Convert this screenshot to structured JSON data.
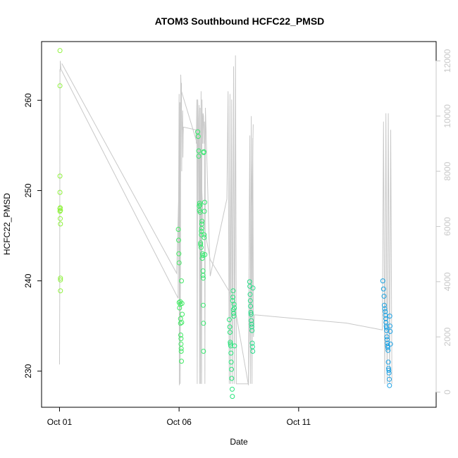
{
  "chart_data": {
    "type": "scatter",
    "title": "ATOM3 Southbound HCFC22_PMSD",
    "xlabel": "Date",
    "ylabel": "HCFC22_PMSD",
    "x_unit": "days since Oct 01",
    "xlim": [
      -0.75,
      15.75
    ],
    "ylim": [
      226,
      266.5
    ],
    "y2lim": [
      -550,
      12700
    ],
    "x_ticks": [
      {
        "value": 0,
        "label": "Oct 01"
      },
      {
        "value": 5,
        "label": "Oct 06"
      },
      {
        "value": 10,
        "label": "Oct 11"
      }
    ],
    "y_ticks": [
      230,
      240,
      250,
      260
    ],
    "y2_ticks": [
      0,
      2000,
      4000,
      6000,
      8000,
      10000,
      12000
    ],
    "grid": false,
    "colors": {
      "axis": "#000000",
      "secondary_axis": "#c8c8c8",
      "trace_line": "#c8c8c8",
      "point_gradient": [
        "#8ef23a",
        "#1a9ee8"
      ]
    },
    "series": [
      {
        "type": "scatter",
        "axis": "left",
        "x": [
          0.02,
          0.02,
          0.02,
          0.02,
          0.02,
          0.02,
          0.03,
          0.04,
          0.04,
          0.04,
          0.04,
          0.04,
          0.03,
          4.97,
          4.98,
          4.99,
          5.0,
          5.0,
          5.02,
          5.05,
          5.05,
          5.06,
          5.06,
          5.07,
          5.08,
          5.08,
          5.09,
          5.09,
          5.1,
          5.1,
          5.11,
          5.12,
          5.13,
          5.78,
          5.8,
          5.82,
          5.82,
          5.84,
          5.85,
          5.86,
          5.88,
          5.88,
          5.9,
          5.9,
          5.92,
          5.93,
          5.93,
          5.94,
          5.95,
          5.96,
          5.97,
          5.98,
          5.99,
          6.0,
          6.0,
          6.01,
          6.01,
          6.02,
          6.02,
          6.03,
          6.04,
          6.05,
          6.05,
          6.06,
          6.07,
          6.08,
          7.1,
          7.12,
          7.13,
          7.14,
          7.15,
          7.16,
          7.17,
          7.18,
          7.19,
          7.2,
          7.22,
          7.23,
          7.24,
          7.25,
          7.26,
          7.27,
          7.28,
          7.29,
          7.3,
          7.31,
          7.32,
          7.95,
          7.96,
          7.97,
          7.98,
          7.99,
          8.0,
          8.01,
          8.02,
          8.03,
          8.04,
          8.05,
          8.06,
          8.07,
          8.08,
          8.09,
          13.52,
          13.55,
          13.57,
          13.58,
          13.6,
          13.62,
          13.63,
          13.64,
          13.65,
          13.66,
          13.67,
          13.68,
          13.69,
          13.7,
          13.71,
          13.72,
          13.73,
          13.74,
          13.75,
          13.76,
          13.77,
          13.78,
          13.79,
          13.8,
          13.81,
          13.82,
          13.83,
          13.84
        ],
        "y": [
          265.5,
          261.6,
          251.6,
          249.8,
          248.0,
          247.7,
          246.9,
          246.3,
          240.3,
          240.1,
          238.9,
          247.8,
          248.1,
          245.7,
          244.5,
          243.0,
          242.0,
          237.6,
          237.0,
          237.7,
          237.4,
          235.8,
          235.3,
          234.0,
          233.6,
          233.0,
          232.5,
          232.2,
          231.1,
          240.0,
          235.4,
          237.5,
          236.3,
          256.5,
          256.0,
          254.4,
          253.8,
          248.3,
          247.8,
          248.6,
          248.4,
          247.6,
          244.2,
          244.0,
          243.7,
          245.1,
          245.5,
          245.8,
          246.3,
          246.6,
          242.5,
          243.0,
          242.8,
          241.1,
          240.6,
          240.3,
          237.3,
          235.3,
          232.2,
          254.2,
          254.3,
          245.1,
          244.8,
          247.7,
          248.7,
          242.9,
          235.7,
          234.9,
          234.3,
          233.2,
          233.0,
          232.8,
          232.0,
          231.0,
          230.2,
          229.2,
          228.0,
          227.2,
          237.8,
          238.2,
          238.9,
          236.8,
          236.4,
          236.1,
          237.4,
          237.0,
          232.8,
          239.9,
          239.4,
          238.5,
          237.8,
          237.2,
          236.5,
          236.3,
          235.6,
          235.2,
          234.9,
          234.5,
          233.1,
          232.7,
          232.2,
          239.2,
          240.0,
          239.1,
          238.3,
          237.3,
          236.9,
          236.6,
          236.2,
          235.8,
          235.4,
          235.0,
          234.8,
          234.5,
          233.8,
          233.5,
          233.1,
          232.8,
          232.6,
          232.3,
          231.0,
          230.3,
          230.1,
          229.8,
          229.1,
          228.4,
          236.1,
          235.0,
          234.4,
          233.0
        ]
      },
      {
        "type": "line",
        "axis": "right",
        "x": [
          0.0,
          0.01,
          0.01,
          0.02,
          0.02,
          0.03,
          0.03,
          0.04,
          0.06,
          4.96,
          5.0,
          5.01,
          5.03,
          5.05,
          5.07,
          5.09,
          5.1,
          5.11,
          5.12,
          5.13,
          5.14,
          5.15,
          5.16,
          5.17,
          5.18,
          5.7,
          5.72,
          5.74,
          5.76,
          5.78,
          5.8,
          5.82,
          5.84,
          5.86,
          5.88,
          5.9,
          5.92,
          5.94,
          5.96,
          5.98,
          6.0,
          6.02,
          6.04,
          6.06,
          6.08,
          6.1,
          6.3,
          7.0,
          7.05,
          7.1,
          7.13,
          7.16,
          7.2,
          7.24,
          7.28,
          7.32,
          7.36,
          7.4,
          7.9,
          7.93,
          7.96,
          7.99,
          8.02,
          8.05,
          8.08,
          8.11,
          8.15,
          12.0,
          13.5,
          13.55,
          13.6,
          13.65,
          13.7,
          13.75,
          13.8,
          13.85,
          13.9
        ],
        "y": [
          1000,
          3600,
          5500,
          10500,
          11700,
          11600,
          12000,
          11900,
          11700,
          3400,
          10800,
          250,
          10500,
          300,
          11500,
          10900,
          11200,
          8000,
          9800,
          9500,
          10000,
          10200,
          8500,
          9300,
          9600,
          9500,
          9000,
          10600,
          300,
          10600,
          9900,
          6500,
          10400,
          300,
          10300,
          300,
          10900,
          300,
          10600,
          9000,
          10100,
          10000,
          9000,
          9800,
          300,
          10300,
          4200,
          7000,
          10900,
          300,
          10800,
          300,
          10600,
          300,
          11800,
          300,
          12200,
          300,
          300,
          5900,
          9300,
          300,
          10000,
          300,
          9200,
          2000,
          2800,
          2500,
          2250,
          9800,
          300,
          10100,
          300,
          10100,
          300,
          9500,
          300
        ]
      },
      {
        "type": "line",
        "axis": "right",
        "x": [
          0.1,
          4.9,
          5.1,
          5.9,
          6.0,
          6.3,
          7.2,
          7.4,
          7.9,
          8.1
        ],
        "y": [
          11900,
          4300,
          10900,
          8600,
          6200,
          4800,
          3500,
          2750,
          250,
          9700
        ]
      }
    ]
  }
}
